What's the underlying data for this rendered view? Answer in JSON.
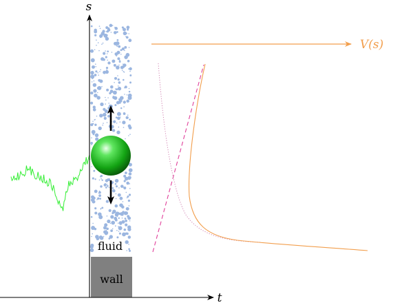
{
  "labels": {
    "s_axis": "s",
    "t_axis": "t",
    "potential": "V(s)",
    "fluid": "fluid",
    "wall": "wall"
  },
  "colors": {
    "particles": "#9bb6e0",
    "wall": "#808080",
    "sphere": "#22c022",
    "noise": "#33ee33",
    "potential": "#f29e4c",
    "dashed": "#e0409a",
    "dotted": "#d080b0"
  },
  "icons": {
    "up_arrow": "arrow-up-icon",
    "down_arrow": "arrow-down-icon"
  }
}
